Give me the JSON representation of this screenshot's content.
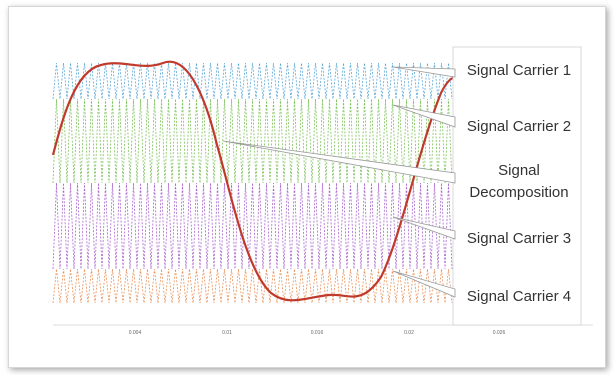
{
  "diagram": {
    "carriers": [
      {
        "label": "Signal Carrier 1",
        "color": "#5aa7d6"
      },
      {
        "label": "Signal Carrier 2",
        "color": "#7cc05a"
      },
      {
        "label": "Signal Carrier 3",
        "color": "#a866cc"
      },
      {
        "label": "Signal Carrier 4",
        "color": "#e8925a"
      }
    ],
    "decomposition_label": [
      "Signal",
      "Decomposition"
    ],
    "signal_color": "#c0392b",
    "x_ticks": [
      "0.004",
      "0.01",
      "0.016",
      "0.02",
      "0.026"
    ]
  }
}
